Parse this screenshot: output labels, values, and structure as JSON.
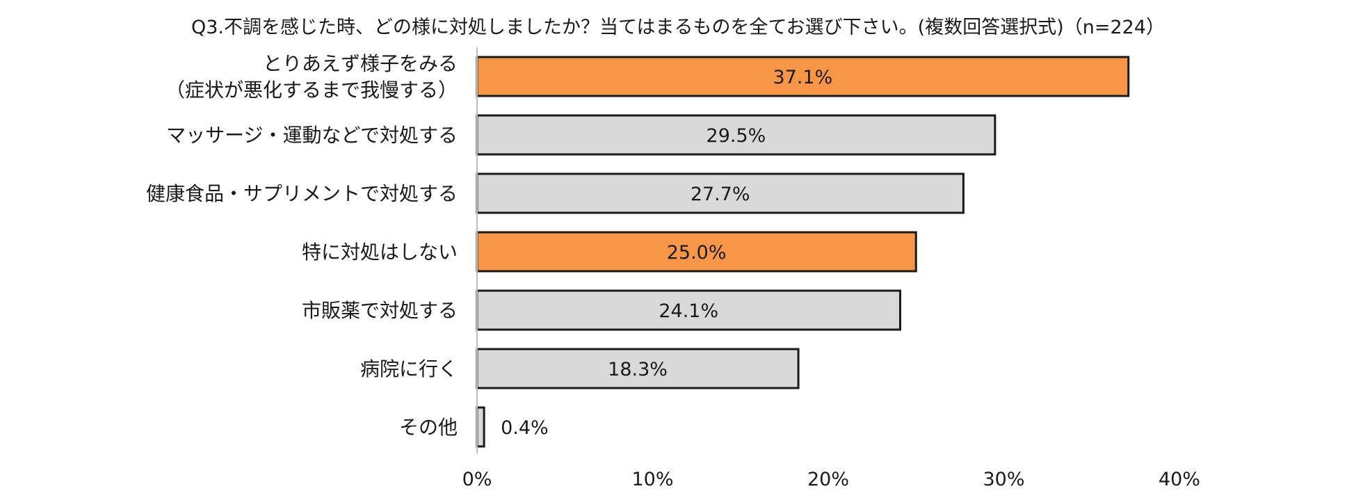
{
  "chart_data": {
    "type": "bar",
    "orientation": "horizontal",
    "title": "Q3.不調を感じた時、どの様に対処しましたか？当てはまるものを全てお選び下さい。(複数回答選択式)（n=224）",
    "categories": [
      [
        "とりあえず様子をみる",
        "（症状が悪化するまで我慢する）"
      ],
      [
        "マッサージ・運動などで対処する"
      ],
      [
        "健康食品・サプリメントで対処する"
      ],
      [
        "特に対処はしない"
      ],
      [
        "市販薬で対処する"
      ],
      [
        "病院に行く"
      ],
      [
        "その他"
      ]
    ],
    "values": [
      37.1,
      29.5,
      27.7,
      25.0,
      24.1,
      18.3,
      0.4
    ],
    "value_labels": [
      "37.1%",
      "29.5%",
      "27.7%",
      "25.0%",
      "24.1%",
      "18.3%",
      "0.4%"
    ],
    "highlight": [
      true,
      false,
      false,
      true,
      false,
      false,
      false
    ],
    "colors": {
      "highlight": "#f79646",
      "normal": "#d9d9d9",
      "outline": "#1a1a1a",
      "axis": "#bfbfbf"
    },
    "xlim": [
      0,
      40
    ],
    "xticks": [
      0,
      10,
      20,
      30,
      40
    ],
    "xtick_labels": [
      "0%",
      "10%",
      "20%",
      "30%",
      "40%"
    ],
    "xlabel": "",
    "ylabel": "",
    "grid": false,
    "legend": "none"
  }
}
